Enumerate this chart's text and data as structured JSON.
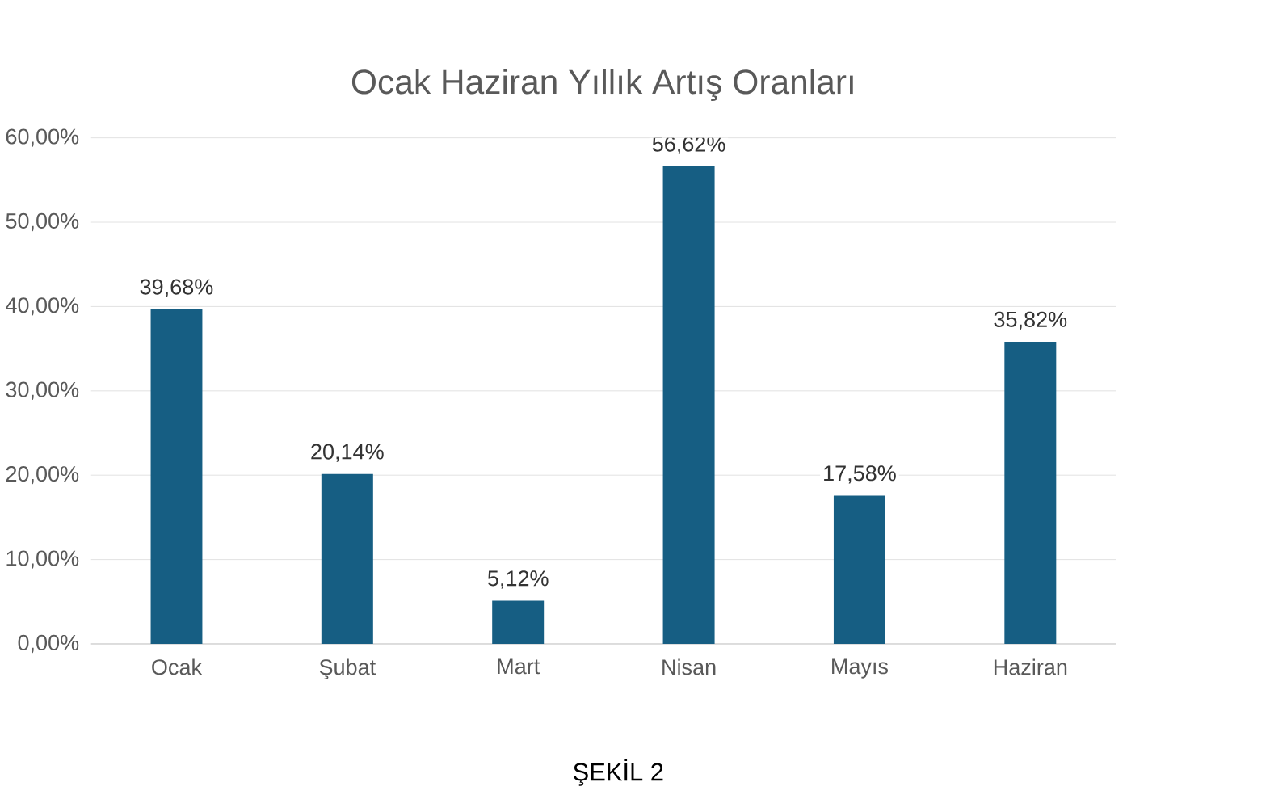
{
  "chart_data": {
    "type": "bar",
    "title": "Ocak Haziran Yıllık Artış Oranları",
    "categories": [
      "Ocak",
      "Şubat",
      "Mart",
      "Nisan",
      "Mayıs",
      "Haziran"
    ],
    "values": [
      39.68,
      20.14,
      5.12,
      56.62,
      17.58,
      35.82
    ],
    "value_labels": [
      "39,68%",
      "20,14%",
      "5,12%",
      "56,62%",
      "17,58%",
      "35,82%"
    ],
    "color": "#165e83",
    "ylim": [
      0,
      60
    ],
    "yticks": [
      {
        "value": 0,
        "label": "0,00%"
      },
      {
        "value": 10,
        "label": "10,00%"
      },
      {
        "value": 20,
        "label": "20,00%"
      },
      {
        "value": 30,
        "label": "30,00%"
      },
      {
        "value": 40,
        "label": "40,00%"
      },
      {
        "value": 50,
        "label": "50,00%"
      },
      {
        "value": 60,
        "label": "60,00%"
      }
    ],
    "grid": "y",
    "annotations": [
      "ŞEKİL 2"
    ]
  }
}
